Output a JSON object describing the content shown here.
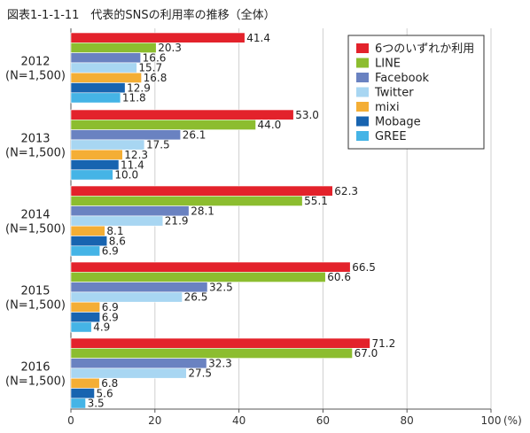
{
  "chart_data": {
    "type": "bar",
    "orientation": "horizontal",
    "title": "図表1-1-1-11　代表的SNSの利用率の推移（全体）",
    "xlabel": "",
    "ylabel": "",
    "xlim": [
      0,
      100
    ],
    "xticks": [
      "0",
      "20",
      "40",
      "60",
      "80",
      "100"
    ],
    "unit_label": "(%)",
    "grid": true,
    "legend_position": "top-right",
    "categories": [
      {
        "year": "2012",
        "n": "(N=1,500)"
      },
      {
        "year": "2013",
        "n": "(N=1,500)"
      },
      {
        "year": "2014",
        "n": "(N=1,500)"
      },
      {
        "year": "2015",
        "n": "(N=1,500)"
      },
      {
        "year": "2016",
        "n": "(N=1,500)"
      }
    ],
    "series": [
      {
        "name": "6つのいずれか利用",
        "color": "#e3222b",
        "values": [
          41.4,
          53.0,
          62.3,
          66.5,
          71.2
        ],
        "labels": [
          "41.4",
          "53.0",
          "62.3",
          "66.5",
          "71.2"
        ]
      },
      {
        "name": "LINE",
        "color": "#8cbd2f",
        "values": [
          20.3,
          44.0,
          55.1,
          60.6,
          67.0
        ],
        "labels": [
          "20.3",
          "44.0",
          "55.1",
          "60.6",
          "67.0"
        ]
      },
      {
        "name": "Facebook",
        "color": "#6a82c1",
        "values": [
          16.6,
          26.1,
          28.1,
          32.5,
          32.3
        ],
        "labels": [
          "16.6",
          "26.1",
          "28.1",
          "32.5",
          "32.3"
        ]
      },
      {
        "name": "Twitter",
        "color": "#a8d6f2",
        "values": [
          15.7,
          17.5,
          21.9,
          26.5,
          27.5
        ],
        "labels": [
          "15.7",
          "17.5",
          "21.9",
          "26.5",
          "27.5"
        ]
      },
      {
        "name": "mixi",
        "color": "#f4ae35",
        "values": [
          16.8,
          12.3,
          8.1,
          6.9,
          6.8
        ],
        "labels": [
          "16.8",
          "12.3",
          "8.1",
          "6.9",
          "6.8"
        ]
      },
      {
        "name": "Mobage",
        "color": "#1864b0",
        "values": [
          12.9,
          11.4,
          8.6,
          6.9,
          5.6
        ],
        "labels": [
          "12.9",
          "11.4",
          "8.6",
          "6.9",
          "5.6"
        ]
      },
      {
        "name": "GREE",
        "color": "#45b4e6",
        "values": [
          11.8,
          10.0,
          6.9,
          4.9,
          3.5
        ],
        "labels": [
          "11.8",
          "10.0",
          "6.9",
          "4.9",
          "3.5"
        ]
      }
    ]
  }
}
